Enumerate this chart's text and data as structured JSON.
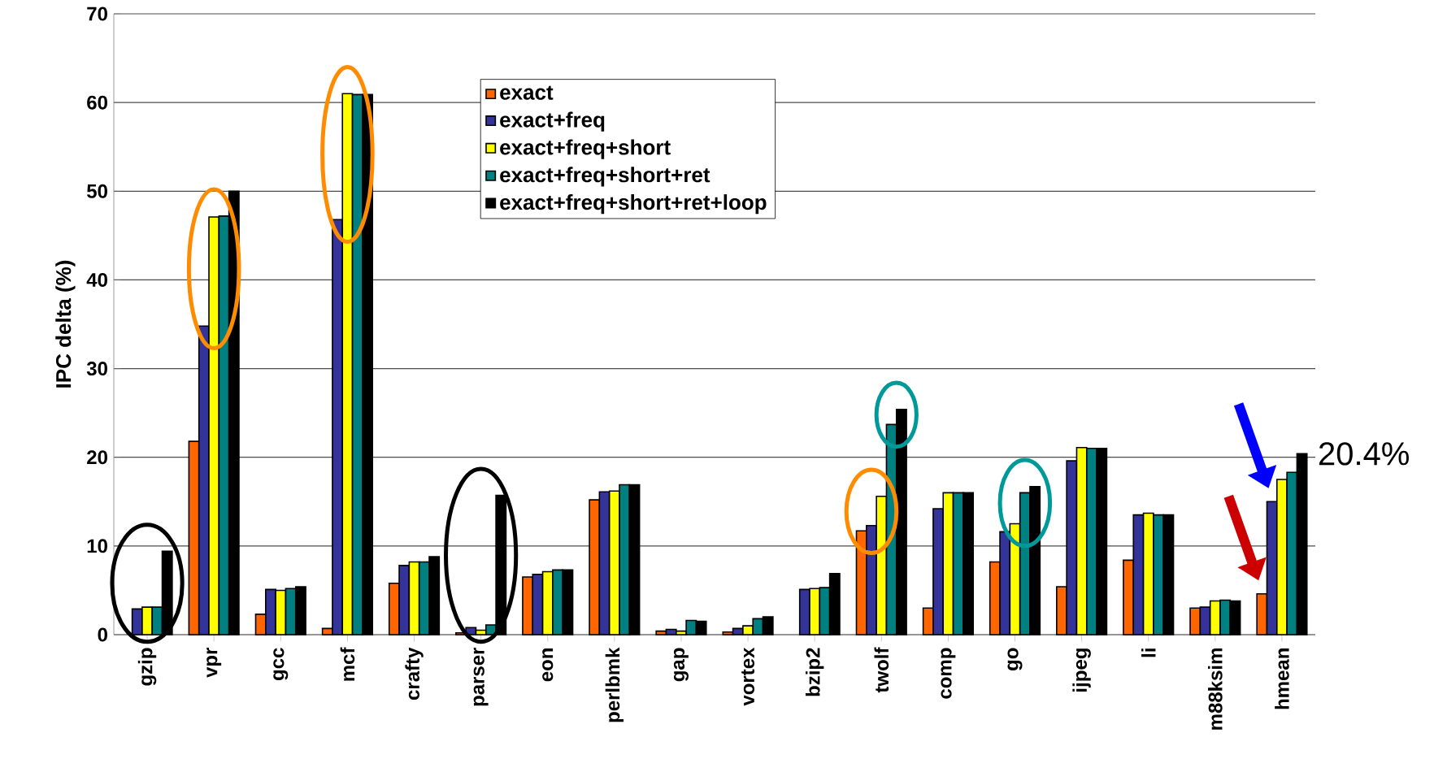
{
  "chart_data": {
    "type": "bar",
    "ylabel": "IPC delta (%)",
    "categories": [
      "gzip",
      "vpr",
      "gcc",
      "mcf",
      "crafty",
      "parser",
      "eon",
      "perlbmk",
      "gap",
      "vortex",
      "bzip2",
      "twolf",
      "comp",
      "go",
      "ijpeg",
      "li",
      "m88ksim",
      "hmean"
    ],
    "series": [
      {
        "name": "exact",
        "color": "#ff6600",
        "values": [
          null,
          21.8,
          2.3,
          0.7,
          5.8,
          0.2,
          6.5,
          15.2,
          0.4,
          0.3,
          null,
          11.7,
          3.0,
          8.2,
          5.4,
          8.4,
          3.0,
          4.6
        ]
      },
      {
        "name": "exact+freq",
        "color": "#333399",
        "values": [
          2.9,
          34.8,
          5.1,
          46.8,
          7.8,
          0.8,
          6.8,
          16.1,
          0.6,
          0.7,
          5.1,
          12.3,
          14.2,
          11.6,
          19.6,
          13.5,
          3.1,
          15.0
        ]
      },
      {
        "name": "exact+freq+short",
        "color": "#ffff00",
        "values": [
          3.1,
          47.1,
          5.0,
          61.0,
          8.2,
          0.5,
          7.1,
          16.2,
          0.4,
          1.0,
          5.2,
          15.6,
          16.0,
          12.5,
          21.1,
          13.7,
          3.8,
          17.5
        ]
      },
      {
        "name": "exact+freq+short+ret",
        "color": "#008080",
        "values": [
          3.1,
          47.2,
          5.2,
          60.9,
          8.2,
          1.1,
          7.3,
          16.9,
          1.6,
          1.8,
          5.3,
          23.7,
          16.0,
          16.0,
          21.0,
          13.5,
          3.9,
          18.3
        ]
      },
      {
        "name": "exact+freq+short+ret+loop",
        "color": "#000000",
        "values": [
          9.4,
          50.0,
          5.4,
          60.9,
          8.8,
          15.7,
          7.3,
          16.9,
          1.5,
          2.0,
          6.9,
          25.4,
          16.0,
          16.7,
          21.0,
          13.5,
          3.8,
          20.4
        ]
      }
    ],
    "ylim": [
      0,
      70
    ],
    "yticks": [
      0,
      10,
      20,
      30,
      40,
      50,
      60,
      70
    ],
    "grid": "y",
    "legend": "top",
    "annotations": [
      "20.4%"
    ]
  }
}
